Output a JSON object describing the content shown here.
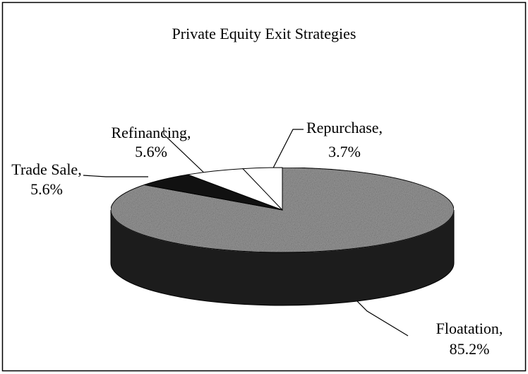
{
  "chart_data": {
    "type": "pie",
    "title": "Private Equity Exit Strategies",
    "categories": [
      "Floatation,",
      "Trade Sale,",
      "Refinancing,",
      "Repurchase,"
    ],
    "values": [
      85.2,
      5.6,
      5.6,
      3.7
    ],
    "value_labels": [
      "85.2%",
      "5.6%",
      "5.6%",
      "3.7%"
    ],
    "colors": [
      "#9a9a9a",
      "#111111",
      "#ffffff",
      "#ffffff"
    ],
    "three_d": true
  }
}
